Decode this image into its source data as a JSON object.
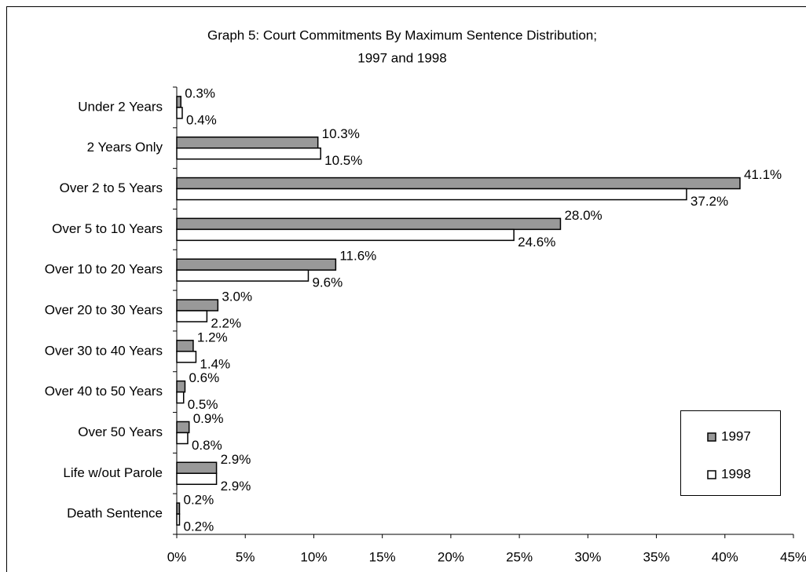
{
  "chart_data": {
    "type": "bar",
    "orientation": "horizontal",
    "title": [
      "Graph 5: Court Commitments By Maximum Sentence Distribution;",
      "1997 and 1998"
    ],
    "categories": [
      "Under 2 Years",
      "2 Years Only",
      "Over 2 to 5 Years",
      "Over 5 to 10 Years",
      "Over 10 to 20 Years",
      "Over 20 to 30 Years",
      "Over 30 to 40 Years",
      "Over 40 to 50 Years",
      "Over 50 Years",
      "Life w/out Parole",
      "Death Sentence"
    ],
    "series": [
      {
        "name": "1997",
        "color": "#999999",
        "values": [
          0.3,
          10.3,
          41.1,
          28.0,
          11.6,
          3.0,
          1.2,
          0.6,
          0.9,
          2.9,
          0.2
        ],
        "value_labels": [
          "0.3%",
          "10.3%",
          "41.1%",
          "28.0%",
          "11.6%",
          "3.0%",
          "1.2%",
          "0.6%",
          "0.9%",
          "2.9%",
          "0.2%"
        ]
      },
      {
        "name": "1998",
        "color": "#ffffff",
        "values": [
          0.4,
          10.5,
          37.2,
          24.6,
          9.6,
          2.2,
          1.4,
          0.5,
          0.8,
          2.9,
          0.2
        ],
        "value_labels": [
          "0.4%",
          "10.5%",
          "37.2%",
          "24.6%",
          "9.6%",
          "2.2%",
          "1.4%",
          "0.5%",
          "0.8%",
          "2.9%",
          "0.2%"
        ]
      }
    ],
    "xlim": [
      0,
      45
    ],
    "xticks": [
      {
        "value": 0,
        "label": "0%"
      },
      {
        "value": 5,
        "label": "5%"
      },
      {
        "value": 10,
        "label": "10%"
      },
      {
        "value": 15,
        "label": "15%"
      },
      {
        "value": 20,
        "label": "20%"
      },
      {
        "value": 25,
        "label": "25%"
      },
      {
        "value": 30,
        "label": "30%"
      },
      {
        "value": 35,
        "label": "35%"
      },
      {
        "value": 40,
        "label": "40%"
      },
      {
        "value": 45,
        "label": "45%"
      }
    ],
    "grid": false,
    "legend": "lower right"
  }
}
